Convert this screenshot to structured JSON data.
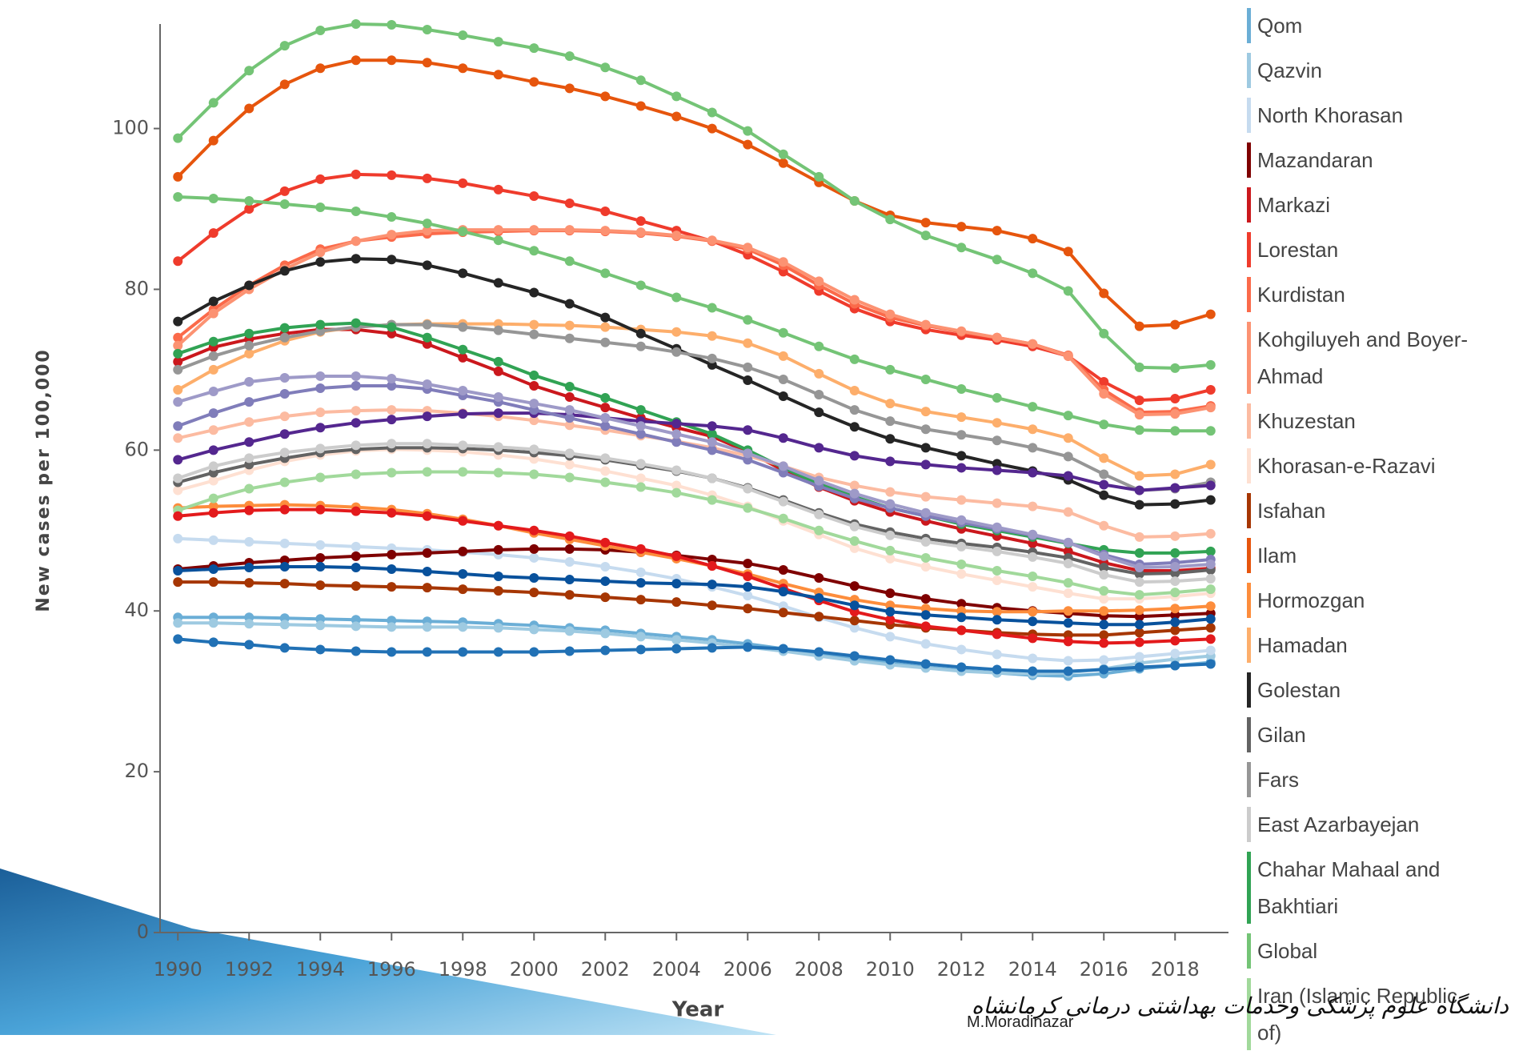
{
  "chart_data": {
    "type": "line",
    "x_label": "Year",
    "y_label": "New cases per 100,000",
    "x": [
      1990,
      1991,
      1992,
      1993,
      1994,
      1995,
      1996,
      1997,
      1998,
      1999,
      2000,
      2001,
      2002,
      2003,
      2004,
      2005,
      2006,
      2007,
      2008,
      2009,
      2010,
      2011,
      2012,
      2013,
      2014,
      2015,
      2016,
      2017,
      2018,
      2019
    ],
    "xlim": [
      1989.5,
      2019.5
    ],
    "xticks": [
      1990,
      1992,
      1994,
      1996,
      1998,
      2000,
      2002,
      2004,
      2006,
      2008,
      2010,
      2012,
      2014,
      2016,
      2018
    ],
    "ylim": [
      0,
      113
    ],
    "yticks": [
      0,
      20,
      40,
      60,
      80,
      100
    ],
    "series": [
      {
        "name": "Qom",
        "color": "#6baed6",
        "values": [
          39.2,
          39.2,
          39.2,
          39.1,
          39,
          38.9,
          38.8,
          38.7,
          38.6,
          38.4,
          38.2,
          37.9,
          37.6,
          37.2,
          36.8,
          36.4,
          35.9,
          35.3,
          34.7,
          34.1,
          33.5,
          33,
          32.6,
          32.3,
          32,
          31.9,
          32.2,
          32.8,
          33.2,
          33.6
        ]
      },
      {
        "name": "Qazvin",
        "color": "#9ecae1",
        "values": [
          38.5,
          38.5,
          38.4,
          38.3,
          38.2,
          38.1,
          38,
          38,
          38,
          37.9,
          37.7,
          37.5,
          37.2,
          36.8,
          36.4,
          36,
          35.5,
          35,
          34.4,
          33.8,
          33.3,
          32.9,
          32.5,
          32.3,
          32.2,
          32.3,
          32.8,
          33.5,
          34,
          34.4
        ]
      },
      {
        "name": "North Khorasan",
        "color": "#c6dbef",
        "values": [
          49,
          48.8,
          48.6,
          48.4,
          48.2,
          48,
          47.8,
          47.6,
          47.3,
          47,
          46.6,
          46.1,
          45.5,
          44.8,
          44,
          43,
          41.9,
          40.6,
          39.2,
          37.9,
          36.8,
          35.9,
          35.2,
          34.6,
          34.1,
          33.8,
          33.9,
          34.3,
          34.7,
          35.1
        ]
      },
      {
        "name": "Mazandaran",
        "color": "#7f0000",
        "values": [
          45.2,
          45.6,
          46,
          46.3,
          46.6,
          46.8,
          47,
          47.2,
          47.4,
          47.6,
          47.7,
          47.7,
          47.6,
          47.3,
          46.9,
          46.4,
          45.9,
          45.1,
          44.1,
          43.1,
          42.2,
          41.5,
          40.9,
          40.4,
          40,
          39.7,
          39.4,
          39.3,
          39.5,
          39.7
        ]
      },
      {
        "name": "Markazi",
        "color": "#cb181d",
        "values": [
          71,
          72.8,
          73.8,
          74.5,
          75,
          75,
          74.5,
          73.2,
          71.5,
          69.8,
          68,
          66.6,
          65.3,
          64,
          62.8,
          61.7,
          59.8,
          57.5,
          55.4,
          53.7,
          52.3,
          51.2,
          50.2,
          49.3,
          48.4,
          47.4,
          46,
          45,
          45,
          45.3
        ]
      },
      {
        "name": "Lorestan",
        "color": "#ef3b2c",
        "values": [
          83.5,
          87,
          90,
          92.2,
          93.7,
          94.3,
          94.2,
          93.8,
          93.2,
          92.4,
          91.6,
          90.7,
          89.7,
          88.5,
          87.3,
          86,
          84.3,
          82.2,
          79.8,
          77.6,
          76,
          75,
          74.3,
          73.7,
          72.9,
          71.7,
          68.5,
          66.2,
          66.4,
          67.5
        ]
      },
      {
        "name": "Kurdistan",
        "color": "#fb6a4a",
        "values": [
          74,
          77.5,
          80.5,
          83,
          85,
          86,
          86.5,
          86.9,
          87.1,
          87.2,
          87.3,
          87.3,
          87.2,
          87,
          86.6,
          86,
          85,
          83,
          80.5,
          78.2,
          76.5,
          75.5,
          74.7,
          74,
          73.2,
          71.8,
          67.5,
          64.7,
          64.8,
          65.5
        ]
      },
      {
        "name": "Kohgiluyeh and Boyer-Ahmad",
        "color": "#fc9272",
        "values": [
          73,
          77,
          80,
          82.5,
          84.6,
          86,
          86.8,
          87.3,
          87.4,
          87.4,
          87.4,
          87.4,
          87.3,
          87.1,
          86.7,
          86.1,
          85.2,
          83.4,
          81,
          78.7,
          76.9,
          75.6,
          74.8,
          74,
          73.2,
          71.7,
          67,
          64.4,
          64.5,
          65.3
        ]
      },
      {
        "name": "Khuzestan",
        "color": "#fcbba1",
        "values": [
          61.5,
          62.5,
          63.5,
          64.2,
          64.7,
          64.9,
          65,
          64.9,
          64.6,
          64.2,
          63.7,
          63.1,
          62.5,
          61.8,
          61.1,
          60.3,
          59.3,
          58,
          56.6,
          55.6,
          54.8,
          54.2,
          53.8,
          53.4,
          53,
          52.3,
          50.6,
          49.2,
          49.3,
          49.6
        ]
      },
      {
        "name": "Khorasan-e-Razavi",
        "color": "#fee0d2",
        "values": [
          55,
          56.2,
          57.5,
          58.6,
          59.4,
          59.9,
          60.1,
          60,
          59.8,
          59.4,
          58.9,
          58.2,
          57.4,
          56.5,
          55.6,
          54.4,
          53,
          51.2,
          49.5,
          47.8,
          46.5,
          45.5,
          44.6,
          43.8,
          43,
          42.2,
          41.5,
          41.5,
          41.8,
          42.2
        ]
      },
      {
        "name": "Isfahan",
        "color": "#a63603",
        "values": [
          43.6,
          43.6,
          43.5,
          43.4,
          43.2,
          43.1,
          43,
          42.9,
          42.7,
          42.5,
          42.3,
          42,
          41.7,
          41.4,
          41.1,
          40.7,
          40.3,
          39.8,
          39.3,
          38.8,
          38.3,
          37.9,
          37.6,
          37.3,
          37.1,
          37,
          37,
          37.3,
          37.6,
          37.9
        ]
      },
      {
        "name": "Ilam",
        "color": "#e6550d",
        "values": [
          94,
          98.5,
          102.5,
          105.5,
          107.5,
          108.5,
          108.5,
          108.2,
          107.5,
          106.7,
          105.8,
          105,
          104,
          102.8,
          101.5,
          100,
          98,
          95.7,
          93.3,
          91,
          89.2,
          88.3,
          87.8,
          87.3,
          86.3,
          84.7,
          79.5,
          75.4,
          75.6,
          76.9
        ]
      },
      {
        "name": "Hormozgan",
        "color": "#fd8d3c",
        "values": [
          52.8,
          53,
          53.1,
          53.2,
          53.1,
          52.9,
          52.6,
          52.1,
          51.4,
          50.6,
          49.7,
          48.9,
          48.1,
          47.3,
          46.5,
          45.6,
          44.6,
          43.4,
          42.3,
          41.4,
          40.7,
          40.3,
          40,
          39.9,
          39.9,
          40,
          40,
          40.1,
          40.3,
          40.6
        ]
      },
      {
        "name": "Hamadan",
        "color": "#fdae6b",
        "values": [
          67.5,
          70,
          72,
          73.6,
          74.7,
          75.3,
          75.6,
          75.7,
          75.7,
          75.7,
          75.6,
          75.5,
          75.3,
          75,
          74.7,
          74.2,
          73.3,
          71.7,
          69.5,
          67.4,
          65.8,
          64.8,
          64.1,
          63.4,
          62.6,
          61.5,
          59,
          56.8,
          57,
          58.2
        ]
      },
      {
        "name": "Golestan",
        "color": "#252525",
        "values": [
          76,
          78.5,
          80.5,
          82.3,
          83.4,
          83.8,
          83.7,
          83,
          82,
          80.8,
          79.6,
          78.2,
          76.5,
          74.5,
          72.6,
          70.6,
          68.7,
          66.7,
          64.7,
          62.9,
          61.4,
          60.3,
          59.3,
          58.3,
          57.4,
          56.3,
          54.4,
          53.2,
          53.3,
          53.8
        ]
      },
      {
        "name": "Gilan",
        "color": "#636363",
        "values": [
          56,
          57.2,
          58.2,
          59,
          59.7,
          60.1,
          60.3,
          60.3,
          60.2,
          60,
          59.7,
          59.3,
          58.8,
          58.1,
          57.4,
          56.5,
          55.3,
          53.8,
          52.2,
          50.8,
          49.8,
          49,
          48.4,
          47.9,
          47.3,
          46.6,
          45.4,
          44.6,
          44.7,
          45.1
        ]
      },
      {
        "name": "Fars",
        "color": "#969696",
        "values": [
          70,
          71.7,
          73,
          74,
          74.8,
          75.3,
          75.6,
          75.6,
          75.3,
          74.9,
          74.4,
          73.9,
          73.4,
          72.9,
          72.2,
          71.4,
          70.3,
          68.8,
          66.9,
          65,
          63.6,
          62.6,
          61.9,
          61.2,
          60.3,
          59.2,
          57,
          55,
          55.2,
          56
        ]
      },
      {
        "name": "East Azarbayejan",
        "color": "#cccccc",
        "values": [
          56.5,
          58,
          59,
          59.7,
          60.2,
          60.6,
          60.8,
          60.8,
          60.6,
          60.4,
          60.1,
          59.6,
          59,
          58.3,
          57.5,
          56.5,
          55.2,
          53.6,
          52,
          50.5,
          49.4,
          48.6,
          48,
          47.4,
          46.7,
          45.9,
          44.5,
          43.6,
          43.7,
          44
        ]
      },
      {
        "name": "Chahar Mahaal and Bakhtiari",
        "color": "#31a354",
        "values": [
          72,
          73.5,
          74.5,
          75.2,
          75.6,
          75.8,
          75.3,
          74,
          72.5,
          71,
          69.3,
          67.9,
          66.5,
          65,
          63.5,
          62,
          60,
          57.8,
          55.8,
          54.2,
          52.8,
          51.8,
          50.8,
          50,
          49.2,
          48.4,
          47.6,
          47.2,
          47.2,
          47.4
        ]
      },
      {
        "name": "Global",
        "color": "#74c476",
        "values": [
          98.8,
          103.2,
          107.2,
          110.3,
          112.2,
          113,
          112.9,
          112.3,
          111.6,
          110.8,
          110,
          109,
          107.6,
          106,
          104,
          102,
          99.7,
          96.8,
          94,
          91,
          88.7,
          86.7,
          85.2,
          83.7,
          82,
          79.8,
          74.5,
          70.3,
          70.2,
          70.6
        ]
      },
      {
        "name": "Iran (Islamic Republic of)",
        "color": "#a1d99b",
        "values": [
          52.5,
          54,
          55.2,
          56,
          56.6,
          57,
          57.2,
          57.3,
          57.3,
          57.2,
          57,
          56.6,
          56,
          55.4,
          54.7,
          53.8,
          52.8,
          51.5,
          50,
          48.7,
          47.5,
          46.6,
          45.8,
          45,
          44.3,
          43.5,
          42.5,
          42,
          42.3,
          42.7
        ]
      },
      {
        "color": "#74c476",
        "values": [
          91.5,
          91.3,
          91,
          90.6,
          90.2,
          89.7,
          89,
          88.2,
          87.2,
          86.1,
          84.8,
          83.5,
          82,
          80.5,
          79,
          77.7,
          76.2,
          74.6,
          72.9,
          71.3,
          70,
          68.8,
          67.6,
          66.5,
          65.4,
          64.3,
          63.2,
          62.5,
          62.4,
          62.4
        ]
      },
      {
        "color": "#e31a1c",
        "values": [
          51.8,
          52.2,
          52.5,
          52.6,
          52.6,
          52.4,
          52.2,
          51.8,
          51.2,
          50.6,
          50,
          49.3,
          48.5,
          47.7,
          46.8,
          45.6,
          44.3,
          42.8,
          41.3,
          39.9,
          38.9,
          38.1,
          37.6,
          37.1,
          36.6,
          36.2,
          36,
          36.1,
          36.3,
          36.5
        ]
      },
      {
        "color": "#2171b5",
        "values": [
          36.5,
          36.1,
          35.8,
          35.4,
          35.2,
          35,
          34.9,
          34.9,
          34.9,
          34.9,
          34.9,
          35,
          35.1,
          35.2,
          35.3,
          35.4,
          35.5,
          35.3,
          34.9,
          34.4,
          33.9,
          33.4,
          33,
          32.7,
          32.5,
          32.5,
          32.7,
          33,
          33.2,
          33.4
        ]
      },
      {
        "color": "#08519c",
        "values": [
          45,
          45.2,
          45.4,
          45.5,
          45.5,
          45.4,
          45.2,
          44.9,
          44.6,
          44.3,
          44.1,
          43.9,
          43.7,
          43.5,
          43.4,
          43.3,
          43,
          42.4,
          41.6,
          40.7,
          39.9,
          39.5,
          39.2,
          38.9,
          38.7,
          38.5,
          38.3,
          38.3,
          38.6,
          39
        ]
      },
      {
        "color": "#54278f",
        "values": [
          58.8,
          60,
          61,
          62,
          62.8,
          63.4,
          63.8,
          64.2,
          64.5,
          64.6,
          64.6,
          64.4,
          64,
          63.6,
          63.3,
          63,
          62.5,
          61.5,
          60.3,
          59.3,
          58.6,
          58.2,
          57.8,
          57.5,
          57.2,
          56.8,
          55.7,
          55,
          55.3,
          55.6
        ]
      },
      {
        "color": "#807dba",
        "values": [
          63,
          64.6,
          66,
          67,
          67.7,
          68,
          68,
          67.6,
          66.8,
          66,
          65,
          64,
          63,
          62,
          61,
          60,
          58.8,
          57.2,
          55.5,
          54,
          52.8,
          51.8,
          51,
          50.2,
          49.4,
          48.5,
          47,
          45.8,
          46,
          46.4
        ]
      },
      {
        "color": "#9e9ac8",
        "values": [
          66,
          67.3,
          68.5,
          69,
          69.2,
          69.2,
          68.9,
          68.2,
          67.4,
          66.6,
          65.8,
          65,
          64,
          63,
          62,
          61,
          59.6,
          58,
          56.2,
          54.6,
          53.3,
          52.2,
          51.3,
          50.4,
          49.5,
          48.5,
          46.8,
          45.4,
          45.5,
          45.8
        ]
      }
    ]
  },
  "footer": {
    "author": "M.Moradinazar",
    "university": "دانشگاه علوم پزشکی وخدمات بهداشتی درمانی کرمانشاه"
  }
}
